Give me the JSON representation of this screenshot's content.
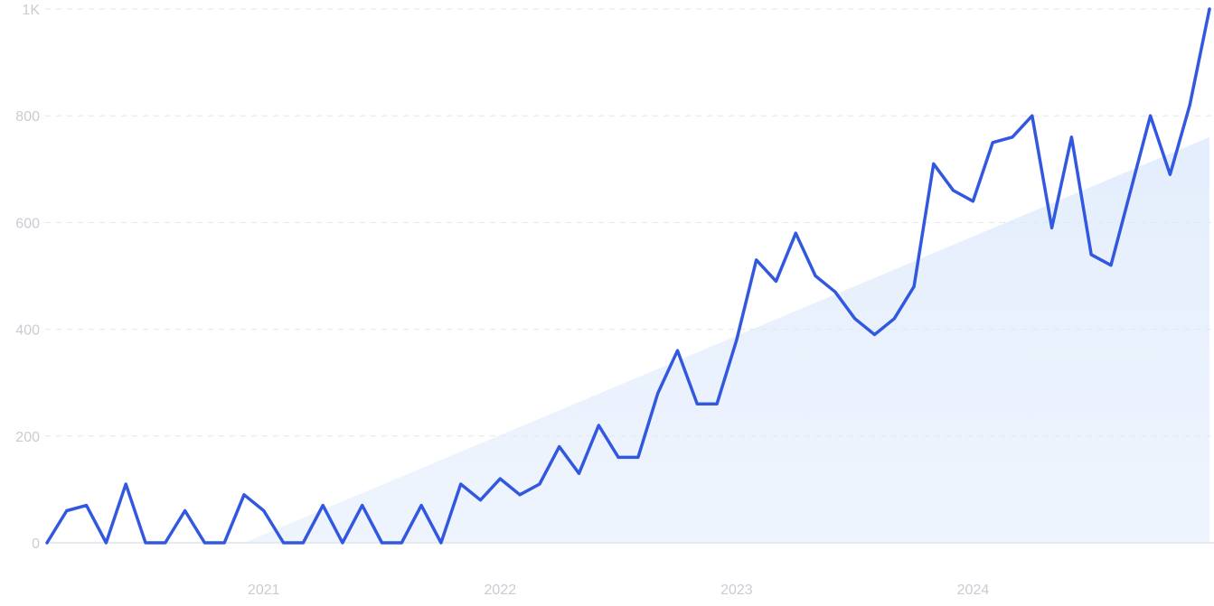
{
  "chart_data": {
    "type": "line",
    "title": "",
    "xlabel": "",
    "ylabel": "",
    "ylim": [
      0,
      1000
    ],
    "y_ticks": [
      {
        "value": 0,
        "label": "0"
      },
      {
        "value": 200,
        "label": "200"
      },
      {
        "value": 400,
        "label": "400"
      },
      {
        "value": 600,
        "label": "600"
      },
      {
        "value": 800,
        "label": "800"
      },
      {
        "value": 1000,
        "label": "1K"
      }
    ],
    "x_ticks": [
      {
        "date": "2021-01",
        "label": "2021"
      },
      {
        "date": "2022-01",
        "label": "2022"
      },
      {
        "date": "2023-01",
        "label": "2023"
      },
      {
        "date": "2024-01",
        "label": "2024"
      }
    ],
    "grid": true,
    "grid_style": "dashed",
    "legend": "none",
    "colors": {
      "line": "#3358e0",
      "trend_fill": "#dbe8fb",
      "grid": "#e3e6ec",
      "baseline": "#dfe3ea",
      "tick_text": "#c9ccd3"
    },
    "series": [
      {
        "values": [
          {
            "x": "2020-02",
            "y": 0
          },
          {
            "x": "2020-03",
            "y": 60
          },
          {
            "x": "2020-04",
            "y": 70
          },
          {
            "x": "2020-05",
            "y": 0
          },
          {
            "x": "2020-06",
            "y": 110
          },
          {
            "x": "2020-07",
            "y": 0
          },
          {
            "x": "2020-08",
            "y": 0
          },
          {
            "x": "2020-09",
            "y": 60
          },
          {
            "x": "2020-10",
            "y": 0
          },
          {
            "x": "2020-11",
            "y": 0
          },
          {
            "x": "2020-12",
            "y": 90
          },
          {
            "x": "2021-01",
            "y": 60
          },
          {
            "x": "2021-02",
            "y": 0
          },
          {
            "x": "2021-03",
            "y": 0
          },
          {
            "x": "2021-04",
            "y": 70
          },
          {
            "x": "2021-05",
            "y": 0
          },
          {
            "x": "2021-06",
            "y": 70
          },
          {
            "x": "2021-07",
            "y": 0
          },
          {
            "x": "2021-08",
            "y": 0
          },
          {
            "x": "2021-09",
            "y": 70
          },
          {
            "x": "2021-10",
            "y": 0
          },
          {
            "x": "2021-11",
            "y": 110
          },
          {
            "x": "2021-12",
            "y": 80
          },
          {
            "x": "2022-01",
            "y": 120
          },
          {
            "x": "2022-02",
            "y": 90
          },
          {
            "x": "2022-03",
            "y": 110
          },
          {
            "x": "2022-04",
            "y": 180
          },
          {
            "x": "2022-05",
            "y": 130
          },
          {
            "x": "2022-06",
            "y": 220
          },
          {
            "x": "2022-07",
            "y": 160
          },
          {
            "x": "2022-08",
            "y": 160
          },
          {
            "x": "2022-09",
            "y": 280
          },
          {
            "x": "2022-10",
            "y": 360
          },
          {
            "x": "2022-11",
            "y": 260
          },
          {
            "x": "2022-12",
            "y": 260
          },
          {
            "x": "2023-01",
            "y": 380
          },
          {
            "x": "2023-02",
            "y": 530
          },
          {
            "x": "2023-03",
            "y": 490
          },
          {
            "x": "2023-04",
            "y": 580
          },
          {
            "x": "2023-05",
            "y": 500
          },
          {
            "x": "2023-06",
            "y": 470
          },
          {
            "x": "2023-07",
            "y": 420
          },
          {
            "x": "2023-08",
            "y": 390
          },
          {
            "x": "2023-09",
            "y": 420
          },
          {
            "x": "2023-10",
            "y": 480
          },
          {
            "x": "2023-11",
            "y": 710
          },
          {
            "x": "2023-12",
            "y": 660
          },
          {
            "x": "2024-01",
            "y": 640
          },
          {
            "x": "2024-02",
            "y": 750
          },
          {
            "x": "2024-03",
            "y": 760
          },
          {
            "x": "2024-04",
            "y": 800
          },
          {
            "x": "2024-05",
            "y": 590
          },
          {
            "x": "2024-06",
            "y": 760
          },
          {
            "x": "2024-07",
            "y": 540
          },
          {
            "x": "2024-08",
            "y": 520
          },
          {
            "x": "2024-09",
            "y": 660
          },
          {
            "x": "2024-10",
            "y": 800
          },
          {
            "x": "2024-11",
            "y": 690
          },
          {
            "x": "2024-12",
            "y": 820
          },
          {
            "x": "2025-01",
            "y": 1000
          }
        ]
      }
    ],
    "trend": {
      "type": "area",
      "start": {
        "x": "2020-12",
        "y": 0
      },
      "end": {
        "x": "2025-01",
        "y": 760
      }
    }
  }
}
